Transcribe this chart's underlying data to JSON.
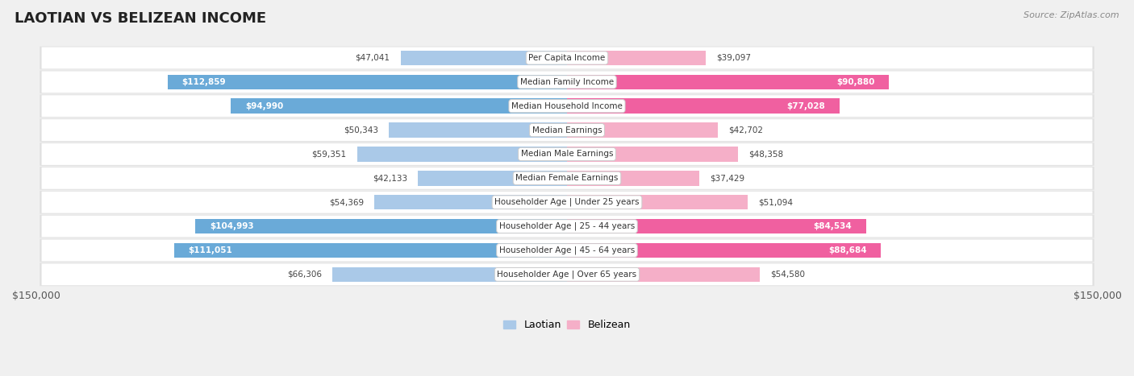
{
  "title": "LAOTIAN VS BELIZEAN INCOME",
  "source": "Source: ZipAtlas.com",
  "categories": [
    "Per Capita Income",
    "Median Family Income",
    "Median Household Income",
    "Median Earnings",
    "Median Male Earnings",
    "Median Female Earnings",
    "Householder Age | Under 25 years",
    "Householder Age | 25 - 44 years",
    "Householder Age | 45 - 64 years",
    "Householder Age | Over 65 years"
  ],
  "laotian_values": [
    47041,
    112859,
    94990,
    50343,
    59351,
    42133,
    54369,
    104993,
    111051,
    66306
  ],
  "belizean_values": [
    39097,
    90880,
    77028,
    42702,
    48358,
    37429,
    51094,
    84534,
    88684,
    54580
  ],
  "laotian_labels": [
    "$47,041",
    "$112,859",
    "$94,990",
    "$50,343",
    "$59,351",
    "$42,133",
    "$54,369",
    "$104,993",
    "$111,051",
    "$66,306"
  ],
  "belizean_labels": [
    "$39,097",
    "$90,880",
    "$77,028",
    "$42,702",
    "$48,358",
    "$37,429",
    "$51,094",
    "$84,534",
    "$88,684",
    "$54,580"
  ],
  "laotian_color_light": "#aac9e8",
  "laotian_color_dark": "#6aaad8",
  "belizean_color_light": "#f5afc8",
  "belizean_color_dark": "#f060a0",
  "inside_label_threshold": 70000,
  "max_value": 150000,
  "background_color": "#f0f0f0",
  "row_bg": "#f7f7f7",
  "row_shadow": "#e0e0e0",
  "title_fontsize": 13,
  "bar_height": 0.62,
  "legend_labels": [
    "Laotian",
    "Belizean"
  ]
}
